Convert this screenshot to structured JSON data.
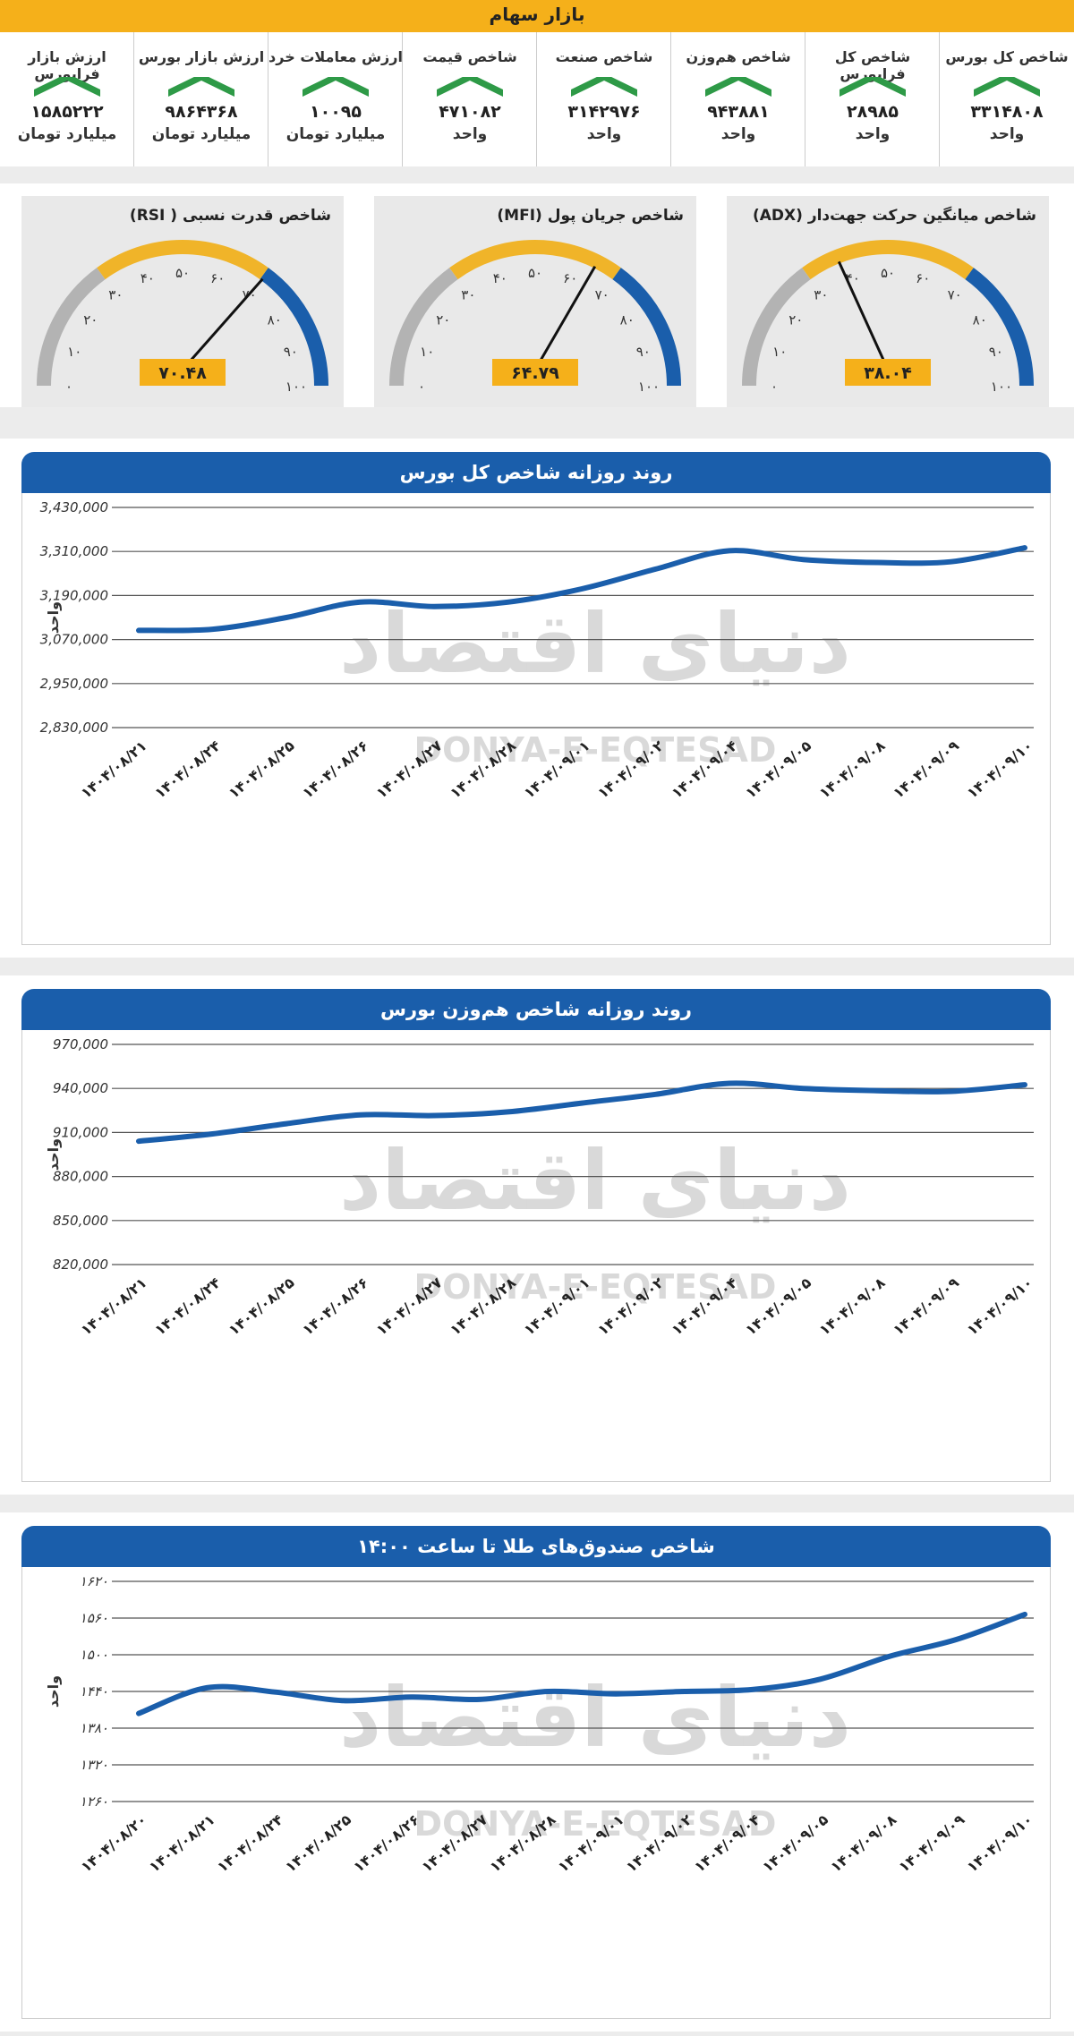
{
  "header": {
    "title": "بازار سهام"
  },
  "stats": [
    {
      "label": "شاخص کل بورس",
      "value": "۳۳۱۴۸۰۸",
      "unit": "واحد"
    },
    {
      "label": "شاخص کل فرابورس",
      "value": "۲۸۹۸۵",
      "unit": "واحد"
    },
    {
      "label": "شاخص هم‌وزن",
      "value": "۹۴۳۸۸۱",
      "unit": "واحد"
    },
    {
      "label": "شاخص صنعت",
      "value": "۳۱۴۲۹۷۶",
      "unit": "واحد"
    },
    {
      "label": "شاخص قیمت",
      "value": "۴۷۱۰۸۲",
      "unit": "واحد"
    },
    {
      "label": "ارزش معاملات خرد",
      "value": "۱۰۰۹۵",
      "unit": "میلیارد تومان"
    },
    {
      "label": "ارزش بازار بورس",
      "value": "۹۸۶۴۳۶۸",
      "unit": "میلیارد تومان"
    },
    {
      "label": "ارزش بازار فرابورس",
      "value": "۱۵۸۵۲۲۲",
      "unit": "میلیارد تومان"
    }
  ],
  "colors": {
    "accent": "#f5b01a",
    "blue": "#1a5eab",
    "green": "#2e9a47",
    "gauge_gray": "#b3b3b3",
    "gauge_yellow": "#f0b429",
    "needle": "#111111"
  },
  "watermark": {
    "latin": "DONYA-E-EQTESAD",
    "persian": "دنیای اقتصاد"
  },
  "gauges": [
    {
      "title": "شاخص قدرت نسبی ( RSI)",
      "value": 70.48,
      "display": "۷۰.۴۸"
    },
    {
      "title": "شاخص جریان پول (MFI)",
      "value": 64.79,
      "display": "۶۴.۷۹"
    },
    {
      "title": "شاخص میانگین حرکت جهت‌دار (ADX)",
      "value": 38.04,
      "display": "۳۸.۰۴"
    }
  ],
  "gauge_ticks": [
    "۰",
    "۱۰",
    "۲۰",
    "۳۰",
    "۴۰",
    "۵۰",
    "۶۰",
    "۷۰",
    "۸۰",
    "۹۰",
    "۱۰۰"
  ],
  "chart_data": [
    {
      "type": "line",
      "title": "روند روزانه شاخص کل بورس",
      "ylabel": "واحد",
      "ylim": [
        2830000,
        3430000
      ],
      "yticks": [
        2830000,
        2950000,
        3070000,
        3190000,
        3310000,
        3430000
      ],
      "ytick_labels": [
        "2,830,000",
        "2,950,000",
        "3,070,000",
        "3,190,000",
        "3,310,000",
        "3,430,000"
      ],
      "categories": [
        "۱۴۰۴/۰۸/۲۱",
        "۱۴۰۴/۰۸/۲۴",
        "۱۴۰۴/۰۸/۲۵",
        "۱۴۰۴/۰۸/۲۶",
        "۱۴۰۴/۰۸/۲۷",
        "۱۴۰۴/۰۸/۲۸",
        "۱۴۰۴/۰۹/۰۱",
        "۱۴۰۴/۰۹/۰۲",
        "۱۴۰۴/۰۹/۰۴",
        "۱۴۰۴/۰۹/۰۵",
        "۱۴۰۴/۰۹/۰۸",
        "۱۴۰۴/۰۹/۰۹",
        "۱۴۰۴/۰۹/۱۰"
      ],
      "values": [
        3095000,
        3098000,
        3130000,
        3172000,
        3160000,
        3172000,
        3208000,
        3262000,
        3312000,
        3288000,
        3280000,
        3282000,
        3320000
      ]
    },
    {
      "type": "line",
      "title": "روند روزانه شاخص هم‌وزن بورس",
      "ylabel": "واحد",
      "ylim": [
        820000,
        970000
      ],
      "yticks": [
        820000,
        850000,
        880000,
        910000,
        940000,
        970000
      ],
      "ytick_labels": [
        "820,000",
        "850,000",
        "880,000",
        "910,000",
        "940,000",
        "970,000"
      ],
      "categories": [
        "۱۴۰۴/۰۸/۲۱",
        "۱۴۰۴/۰۸/۲۴",
        "۱۴۰۴/۰۸/۲۵",
        "۱۴۰۴/۰۸/۲۶",
        "۱۴۰۴/۰۸/۲۷",
        "۱۴۰۴/۰۸/۲۸",
        "۱۴۰۴/۰۹/۰۱",
        "۱۴۰۴/۰۹/۰۲",
        "۱۴۰۴/۰۹/۰۴",
        "۱۴۰۴/۰۹/۰۵",
        "۱۴۰۴/۰۹/۰۸",
        "۱۴۰۴/۰۹/۰۹",
        "۱۴۰۴/۰۹/۱۰"
      ],
      "values": [
        904000,
        909000,
        916000,
        922000,
        921500,
        924000,
        930000,
        936000,
        943500,
        940000,
        938500,
        938000,
        942500
      ]
    },
    {
      "type": "line",
      "title": "شاخص صندوق‌های طلا تا ساعت ۱۴:۰۰",
      "ylabel": "واحد",
      "ylim": [
        1260,
        1620
      ],
      "yticks": [
        1260,
        1320,
        1380,
        1440,
        1500,
        1560,
        1620
      ],
      "ytick_labels": [
        "۱۲۶۰",
        "۱۳۲۰",
        "۱۳۸۰",
        "۱۴۴۰",
        "۱۵۰۰",
        "۱۵۶۰",
        "۱۶۲۰"
      ],
      "categories": [
        "۱۴۰۴/۰۸/۲۰",
        "۱۴۰۴/۰۸/۲۱",
        "۱۴۰۴/۰۸/۲۴",
        "۱۴۰۴/۰۸/۲۵",
        "۱۴۰۴/۰۸/۲۶",
        "۱۴۰۴/۰۸/۲۷",
        "۱۴۰۴/۰۸/۲۸",
        "۱۴۰۴/۰۹/۰۱",
        "۱۴۰۴/۰۹/۰۲",
        "۱۴۰۴/۰۹/۰۴",
        "۱۴۰۴/۰۹/۰۵",
        "۱۴۰۴/۰۹/۰۸",
        "۱۴۰۴/۰۹/۰۹",
        "۱۴۰۴/۰۹/۱۰"
      ],
      "values": [
        1404,
        1446,
        1439,
        1425,
        1431,
        1427,
        1440,
        1436,
        1440,
        1443,
        1460,
        1497,
        1525,
        1566
      ]
    }
  ]
}
